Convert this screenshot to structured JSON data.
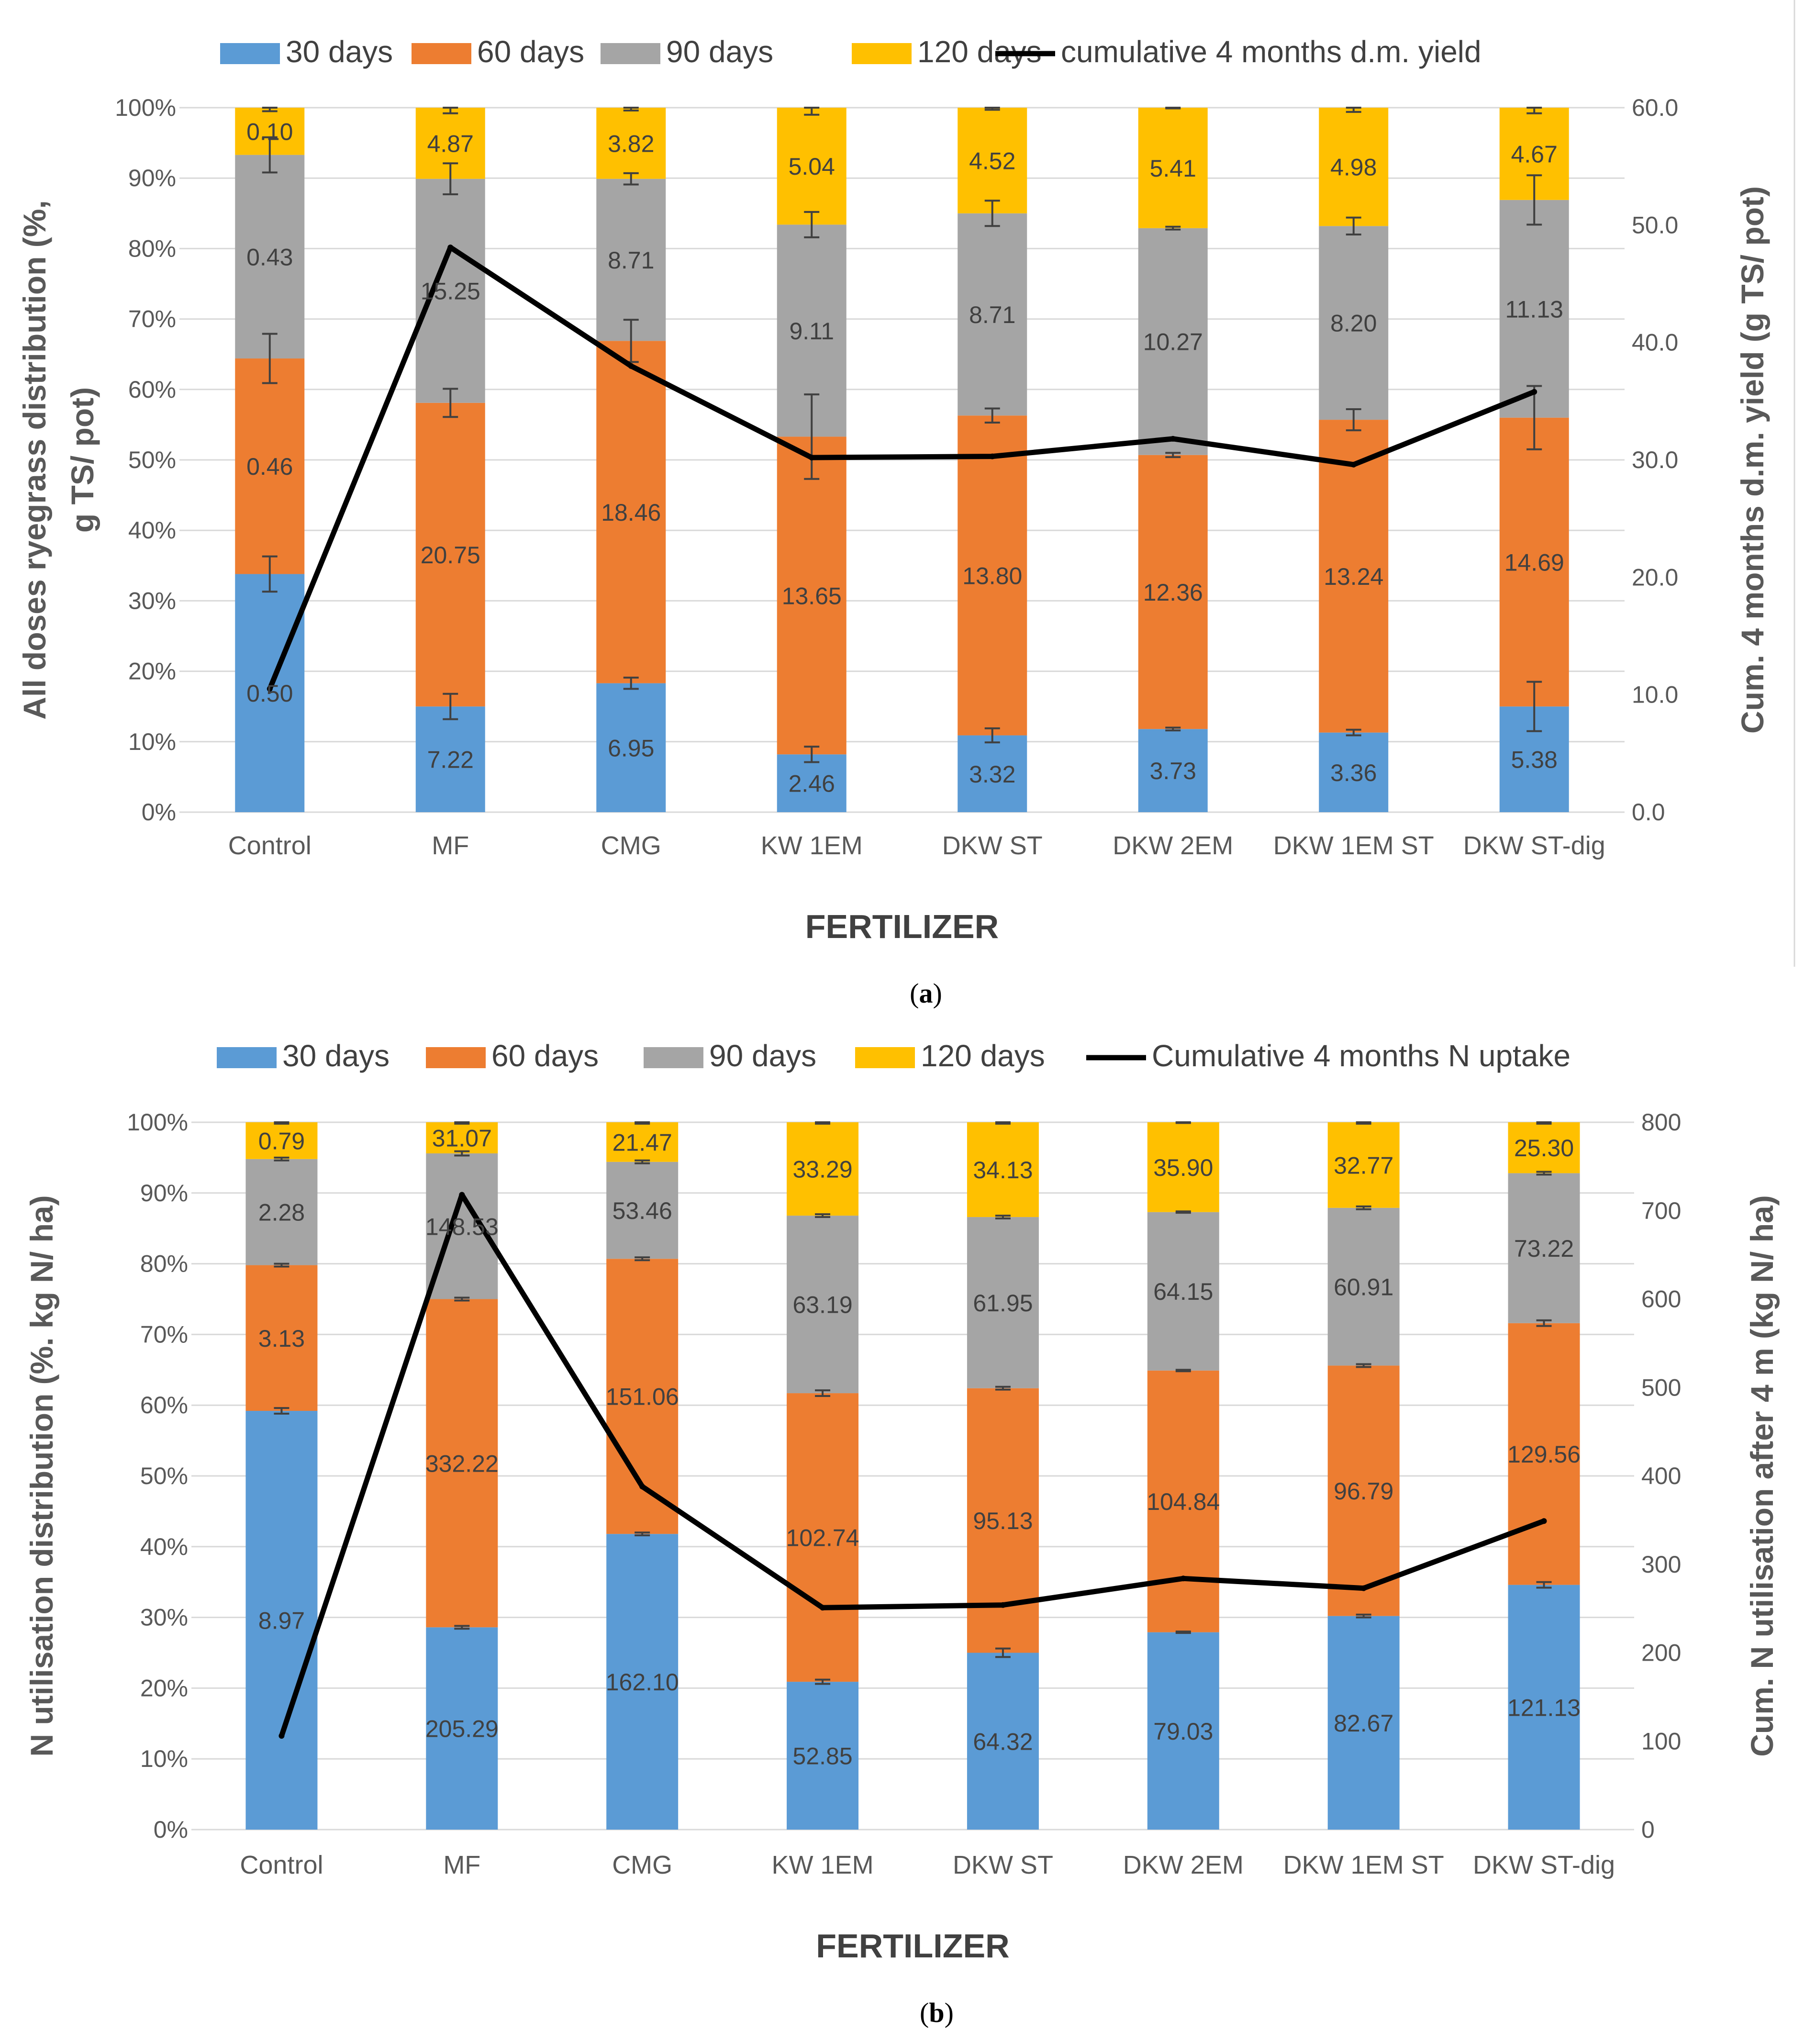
{
  "colors": {
    "d30": "#5b9bd5",
    "d60": "#ed7d31",
    "d90": "#a5a5a5",
    "d120": "#ffc000",
    "line": "#000000",
    "grid": "#d9d9d9",
    "errbar": "#404040"
  },
  "chart_data": [
    {
      "type": "bar",
      "stacked": "percent",
      "caption_letter": "a",
      "caption_open": "(",
      "caption_close": ")",
      "legend": [
        "30 days",
        "60 days",
        "90 days",
        "120 days",
        "cumulative 4 months d.m. yield"
      ],
      "xlabel": "FERTILIZER",
      "ylabel_lines": [
        "All doses ryegrass distribution (%,",
        "g TS/ pot)"
      ],
      "y2label": "Cum. 4 months d.m. yield (g TS/ pot)",
      "ylim": [
        0,
        100
      ],
      "y2lim": [
        0,
        60
      ],
      "y_ticks": [
        "0%",
        "10%",
        "20%",
        "30%",
        "40%",
        "50%",
        "60%",
        "70%",
        "80%",
        "90%",
        "100%"
      ],
      "y2_ticks": [
        "0.0",
        "10.0",
        "20.0",
        "30.0",
        "40.0",
        "50.0",
        "60.0"
      ],
      "categories": [
        "Control",
        "MF",
        "CMG",
        "KW 1EM",
        "DKW ST",
        "DKW 2EM",
        "DKW 1EM ST",
        "DKW ST-dig"
      ],
      "series": [
        {
          "name": "30 days",
          "percent": [
            33.8,
            15.0,
            18.3,
            8.2,
            10.9,
            11.8,
            11.3,
            15.0
          ],
          "labels": [
            "0.50",
            "7.22",
            "6.95",
            "2.46",
            "3.32",
            "3.73",
            "3.36",
            "5.38"
          ],
          "error": [
            2.5,
            1.8,
            0.8,
            1.1,
            1.0,
            0.2,
            0.4,
            3.5
          ]
        },
        {
          "name": "60 days",
          "percent": [
            30.6,
            43.1,
            48.6,
            45.1,
            45.4,
            38.9,
            44.4,
            41.0
          ],
          "labels": [
            "0.46",
            "20.75",
            "18.46",
            "13.65",
            "13.80",
            "12.36",
            "13.24",
            "14.69"
          ],
          "error": [
            3.5,
            2.0,
            3.0,
            6.0,
            1.0,
            0.3,
            1.5,
            4.5
          ]
        },
        {
          "name": "90 days",
          "percent": [
            28.9,
            31.8,
            23.0,
            30.1,
            28.7,
            32.2,
            27.5,
            30.9
          ],
          "labels": [
            "0.43",
            "15.25",
            "8.71",
            "9.11",
            "8.71",
            "10.27",
            "8.20",
            "11.13"
          ],
          "error": [
            2.5,
            2.2,
            0.8,
            1.8,
            1.8,
            0.2,
            1.2,
            3.5
          ]
        },
        {
          "name": "120 days",
          "percent": [
            6.7,
            10.1,
            10.1,
            16.6,
            15.0,
            17.1,
            16.8,
            13.1
          ],
          "labels": [
            "0.10",
            "4.87",
            "3.82",
            "5.04",
            "4.52",
            "5.41",
            "4.98",
            "4.67"
          ],
          "error": [
            0.5,
            0.8,
            0.4,
            1.0,
            0.3,
            0.1,
            0.6,
            0.8
          ]
        }
      ],
      "line": {
        "name": "cumulative 4 months d.m. yield",
        "values": [
          10.5,
          48.1,
          38.0,
          30.2,
          30.3,
          31.8,
          29.6,
          35.8
        ]
      }
    },
    {
      "type": "bar",
      "stacked": "percent",
      "caption_letter": "b",
      "caption_open": "(",
      "caption_close": ")",
      "legend": [
        "30 days",
        "60 days",
        "90 days",
        "120 days",
        "Cumulative 4 months N uptake"
      ],
      "xlabel": "FERTILIZER",
      "ylabel_lines": [
        "N utilisation distribution (%. kg N/ ha)"
      ],
      "y2label": "Cum. N utilisation after 4 m (kg N/ ha)",
      "ylim": [
        0,
        100
      ],
      "y2lim": [
        0,
        800
      ],
      "y_ticks": [
        "0%",
        "10%",
        "20%",
        "30%",
        "40%",
        "50%",
        "60%",
        "70%",
        "80%",
        "90%",
        "100%"
      ],
      "y2_ticks": [
        "0",
        "100",
        "200",
        "300",
        "400",
        "500",
        "600",
        "700",
        "800"
      ],
      "categories": [
        "Control",
        "MF",
        "CMG",
        "KW 1EM",
        "DKW ST",
        "DKW 2EM",
        "DKW 1EM ST",
        "DKW ST-dig"
      ],
      "series": [
        {
          "name": "30 days",
          "percent": [
            59.2,
            28.6,
            41.8,
            20.9,
            25.0,
            27.9,
            30.2,
            34.6
          ],
          "labels": [
            "8.97",
            "205.29",
            "162.10",
            "52.85",
            "64.32",
            "79.03",
            "82.67",
            "121.13"
          ],
          "error": [
            0.4,
            0.2,
            0.2,
            0.3,
            0.6,
            0.1,
            0.2,
            0.4
          ]
        },
        {
          "name": "60 days",
          "percent": [
            20.6,
            46.4,
            38.9,
            40.8,
            37.4,
            37.0,
            35.4,
            37.0
          ],
          "labels": [
            "3.13",
            "332.22",
            "151.06",
            "102.74",
            "95.13",
            "104.84",
            "96.79",
            "129.56"
          ],
          "error": [
            0.2,
            0.2,
            0.2,
            0.4,
            0.2,
            0.1,
            0.2,
            0.4
          ]
        },
        {
          "name": "90 days",
          "percent": [
            15.0,
            20.6,
            13.7,
            25.1,
            24.2,
            22.4,
            22.3,
            21.2
          ],
          "labels": [
            "2.28",
            "148.53",
            "53.46",
            "63.19",
            "61.95",
            "64.15",
            "60.91",
            "73.22"
          ],
          "error": [
            0.2,
            0.3,
            0.2,
            0.2,
            0.2,
            0.1,
            0.2,
            0.2
          ]
        },
        {
          "name": "120 days",
          "percent": [
            5.2,
            4.4,
            5.6,
            13.2,
            13.4,
            12.7,
            12.1,
            7.2
          ],
          "labels": [
            "0.79",
            "31.07",
            "21.47",
            "33.29",
            "34.13",
            "35.90",
            "32.77",
            "25.30"
          ],
          "error": [
            0.2,
            0.2,
            0.2,
            0.2,
            0.2,
            0.1,
            0.2,
            0.2
          ]
        }
      ],
      "line": {
        "name": "Cumulative 4 months N uptake",
        "values": [
          106,
          718,
          388,
          251,
          254,
          284,
          273,
          349
        ]
      }
    }
  ]
}
